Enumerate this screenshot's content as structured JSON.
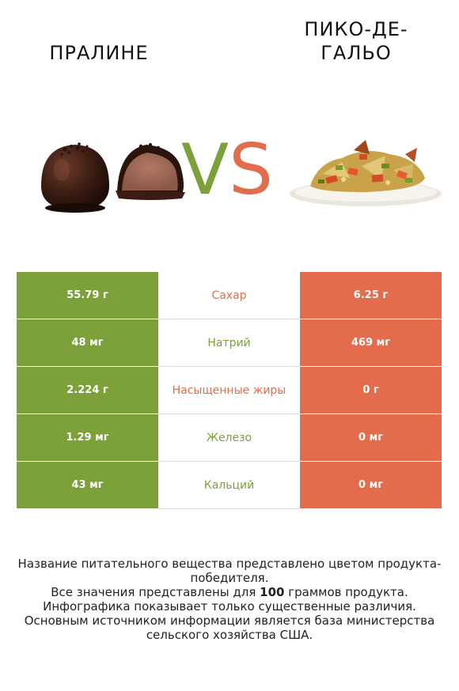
{
  "header": {
    "left_title": "ПРАЛИНЕ",
    "right_title": "ПИКО-ДЕ-ГАЛЬО",
    "vs_v": "V",
    "vs_s": "S"
  },
  "colors": {
    "winner_left": "#7ca13b",
    "winner_right": "#e36c4c"
  },
  "rows": [
    {
      "left": "55.79 г",
      "name": "Сахар",
      "right": "6.25 г",
      "name_color": "#e36c4c"
    },
    {
      "left": "48 мг",
      "name": "Натрий",
      "right": "469 мг",
      "name_color": "#7ca13b"
    },
    {
      "left": "2.224 г",
      "name": "Насыщенные жиры",
      "right": "0 г",
      "name_color": "#e36c4c"
    },
    {
      "left": "1.29 мг",
      "name": "Железо",
      "right": "0 мг",
      "name_color": "#7ca13b"
    },
    {
      "left": "43 мг",
      "name": "Кальций",
      "right": "0 мг",
      "name_color": "#7ca13b"
    }
  ],
  "footer": {
    "line1": "Название питательного вещества представлено цветом продукта-победителя.",
    "line2_pre": "Все значения представлены для ",
    "line2_bold": "100",
    "line2_post": " граммов продукта.",
    "line3": "Инфографика показывает только существенные различия.",
    "line4": "Основным источником информации является база министерства сельского хозяйства США."
  }
}
